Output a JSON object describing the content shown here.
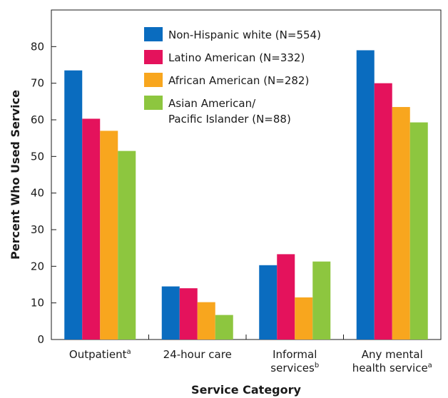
{
  "chart_data": {
    "type": "bar",
    "title": "",
    "xlabel": "Service Category",
    "ylabel": "Percent Who Used Service",
    "ylim": [
      0,
      90
    ],
    "yticks": [
      0,
      10,
      20,
      30,
      40,
      50,
      60,
      70,
      80
    ],
    "grid": false,
    "legend_position": "top-center",
    "categories": [
      {
        "lines": [
          {
            "text": "Outpatient",
            "sup": "a"
          }
        ]
      },
      {
        "lines": [
          {
            "text": "24-hour care",
            "sup": ""
          }
        ]
      },
      {
        "lines": [
          {
            "text": "Informal",
            "sup": ""
          },
          {
            "text": "services",
            "sup": "b"
          }
        ]
      },
      {
        "lines": [
          {
            "text": "Any mental",
            "sup": ""
          },
          {
            "text": "health service",
            "sup": "a"
          }
        ]
      }
    ],
    "series": [
      {
        "name": "Non-Hispanic white (N=554)",
        "legend_lines": [
          "Non-Hispanic white (N=554)"
        ],
        "color": "#0a6cbf",
        "values": [
          73.5,
          14.5,
          20.3,
          79
        ]
      },
      {
        "name": "Latino American (N=332)",
        "legend_lines": [
          "Latino American (N=332)"
        ],
        "color": "#e4125c",
        "values": [
          60.3,
          14,
          23.3,
          70
        ]
      },
      {
        "name": "African American (N=282)",
        "legend_lines": [
          "African American (N=282)"
        ],
        "color": "#f8a61e",
        "values": [
          57,
          10.2,
          11.5,
          63.5
        ]
      },
      {
        "name": "Asian American/ Pacific Islander (N=88)",
        "legend_lines": [
          "Asian American/",
          "Pacific Islander (N=88)"
        ],
        "color": "#8dc63f",
        "values": [
          51.5,
          6.7,
          21.3,
          59.3
        ]
      }
    ]
  }
}
